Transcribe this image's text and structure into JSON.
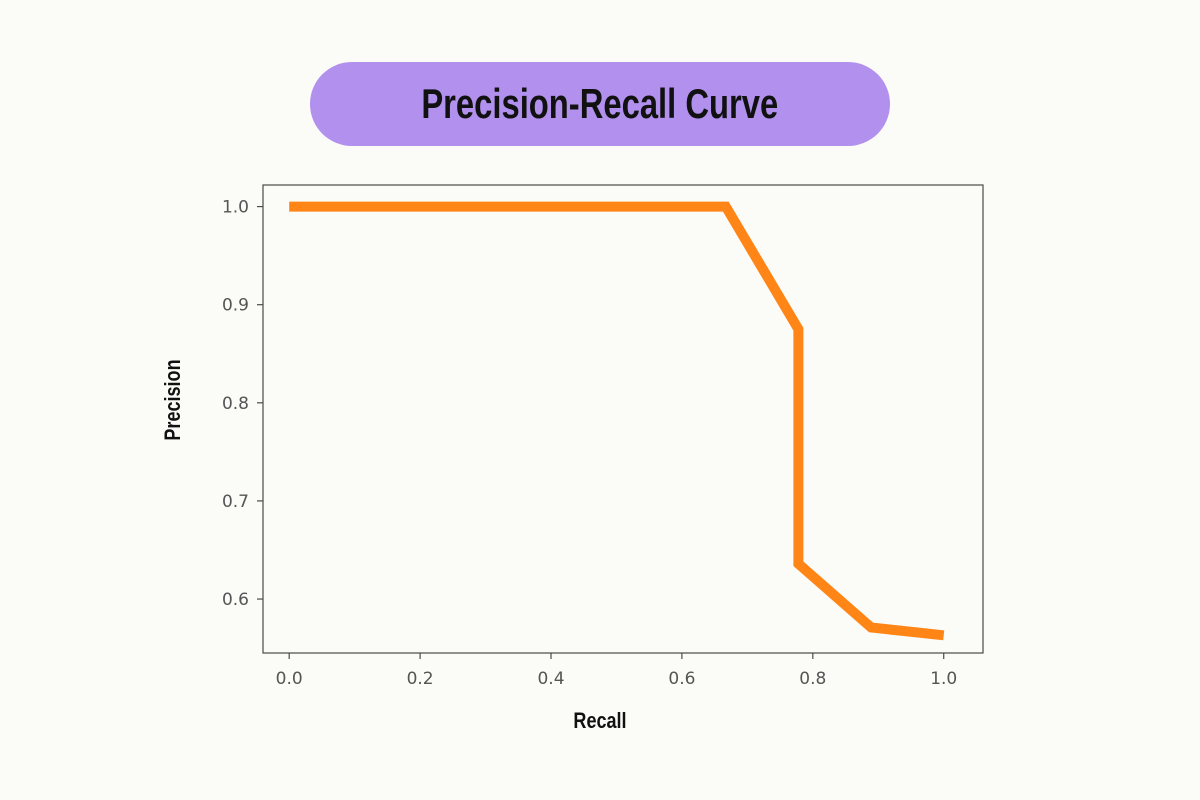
{
  "title": "Precision-Recall Curve",
  "chart_data": {
    "type": "line",
    "title": "Precision-Recall Curve",
    "xlabel": "Recall",
    "ylabel": "Precision",
    "xlim": [
      -0.04,
      1.06
    ],
    "ylim": [
      0.545,
      1.022
    ],
    "xticks": [
      0.0,
      0.2,
      0.4,
      0.6,
      0.8,
      1.0
    ],
    "xtick_labels": [
      "0.0",
      "0.2",
      "0.4",
      "0.6",
      "0.8",
      "1.0"
    ],
    "yticks": [
      0.6,
      0.7,
      0.8,
      0.9,
      1.0
    ],
    "ytick_labels": [
      "0.6",
      "0.7",
      "0.8",
      "0.9",
      "1.0"
    ],
    "grid": false,
    "series": [
      {
        "color": "#ff8516",
        "x": [
          0.0,
          0.667,
          0.778,
          0.778,
          0.889,
          1.0
        ],
        "y": [
          1.0,
          1.0,
          0.875,
          0.636,
          0.571,
          0.563
        ]
      }
    ]
  }
}
